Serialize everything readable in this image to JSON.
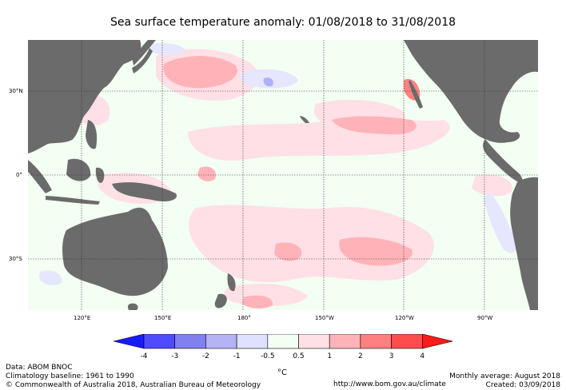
{
  "title": "Sea surface temperature anomaly: 01/08/2018 to 31/08/2018",
  "map": {
    "x_ticks": [
      "120°E",
      "150°E",
      "180°",
      "150°W",
      "120°W",
      "90°W"
    ],
    "y_ticks": [
      "30°N",
      "0°",
      "30°S"
    ],
    "colors": {
      "land": "#6b6b6b",
      "ocean_neutral": "#f2fff2",
      "warm_light": "#ffe0e6",
      "warm_mid": "#ffb3b8",
      "warm_strong": "#ff8080",
      "cool_light": "#e6e6ff",
      "cool_mid": "#b0b0f8"
    }
  },
  "legend": {
    "labels": [
      "-4",
      "-3",
      "-2",
      "-1",
      "-0.5",
      "0.5",
      "1",
      "2",
      "3",
      "4"
    ],
    "colors": [
      "#1a1aff",
      "#4d4dff",
      "#8080f0",
      "#b3b3f5",
      "#e0e0ff",
      "#f2fff2",
      "#ffe0e6",
      "#ffb3b8",
      "#ff8080",
      "#ff4d4d",
      "#ff1a1a"
    ],
    "unit": "°C"
  },
  "footer": {
    "data": "Data: ABOM BNOC",
    "baseline": "Climatology baseline: 1961 to 1990",
    "copyright": "© Commonwealth of Australia 2018, Australian Bureau of Meteorology",
    "url": "http://www.bom.gov.au/climate",
    "monthly": "Monthly average: August 2018",
    "created": "Created: 03/09/2018"
  }
}
